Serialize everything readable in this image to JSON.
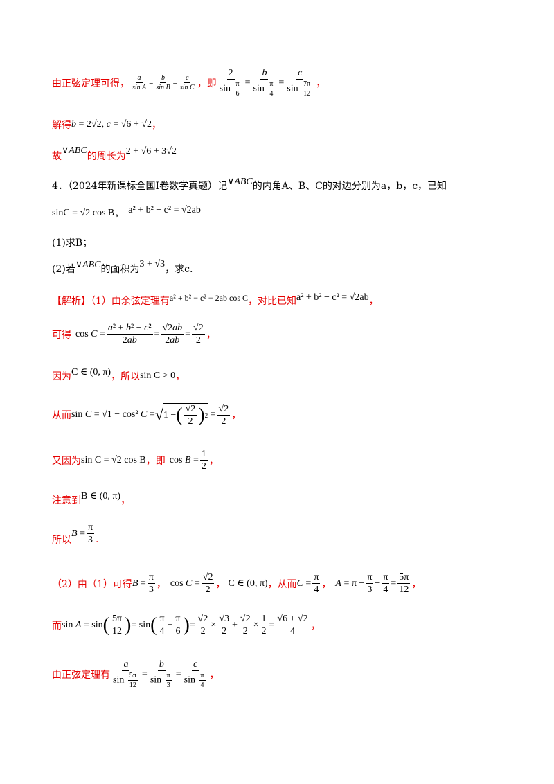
{
  "lines": {
    "l1_prefix": "由正弦定理可得，",
    "l1_mid": "，即",
    "l1_end": "，",
    "l2_prefix": "解得",
    "l2_end": "，",
    "l3_prefix": "故",
    "l3_mid": "的周长为",
    "q4_head": "4．（2024年新课标全国Ⅰ卷数学真题）记",
    "q4_tail": "的内角A、B、C的对边分别为a，b，c，已知",
    "q4_line2_sep": "，",
    "q4_p1": "(1)求B；",
    "q4_p2_pre": "(2)若",
    "q4_p2_mid": "的面积为",
    "q4_p2_end": "，求c.",
    "sol_tag": "【解析】（1）由余弦定理有",
    "sol_mid": "，对比已知",
    "sol_end": "，",
    "s2_prefix": "可得",
    "s2_end": "，",
    "s3_prefix": "因为",
    "s3_mid": "，所以",
    "s3_end": "，",
    "s4_prefix": "从而",
    "s4_end": "，",
    "s5_prefix": "又因为",
    "s5_mid": "，即",
    "s5_end": "，",
    "s6_prefix": "注意到",
    "s6_end": "，",
    "s7_prefix": "所以",
    "s7_end": ".",
    "p2_prefix": "（2）由（1）可得",
    "p2_sep": "，",
    "p2_mid": "，从而",
    "p2_end": "，",
    "p3_prefix": "而",
    "p3_end": "，",
    "p4_prefix": "由正弦定理有",
    "p4_end": "，"
  },
  "math": {
    "abc": "∨ABC",
    "perimeter": "2 + √6 + 3√2",
    "b_val": "b = 2√2, c = √6 + √2",
    "sinC_eq": "sinC = √2 cos B",
    "cos_law": "a² + b² − c² = √2ab",
    "area": "3 + √3",
    "cos_rule": "a² + b² − c² − 2ab cos C",
    "C_range": "C ∈ (0, π)",
    "sinC_pos": "sin C > 0",
    "sinC_eq2": "sin C = √2 cos B",
    "B_range": "B ∈ (0, π)"
  }
}
